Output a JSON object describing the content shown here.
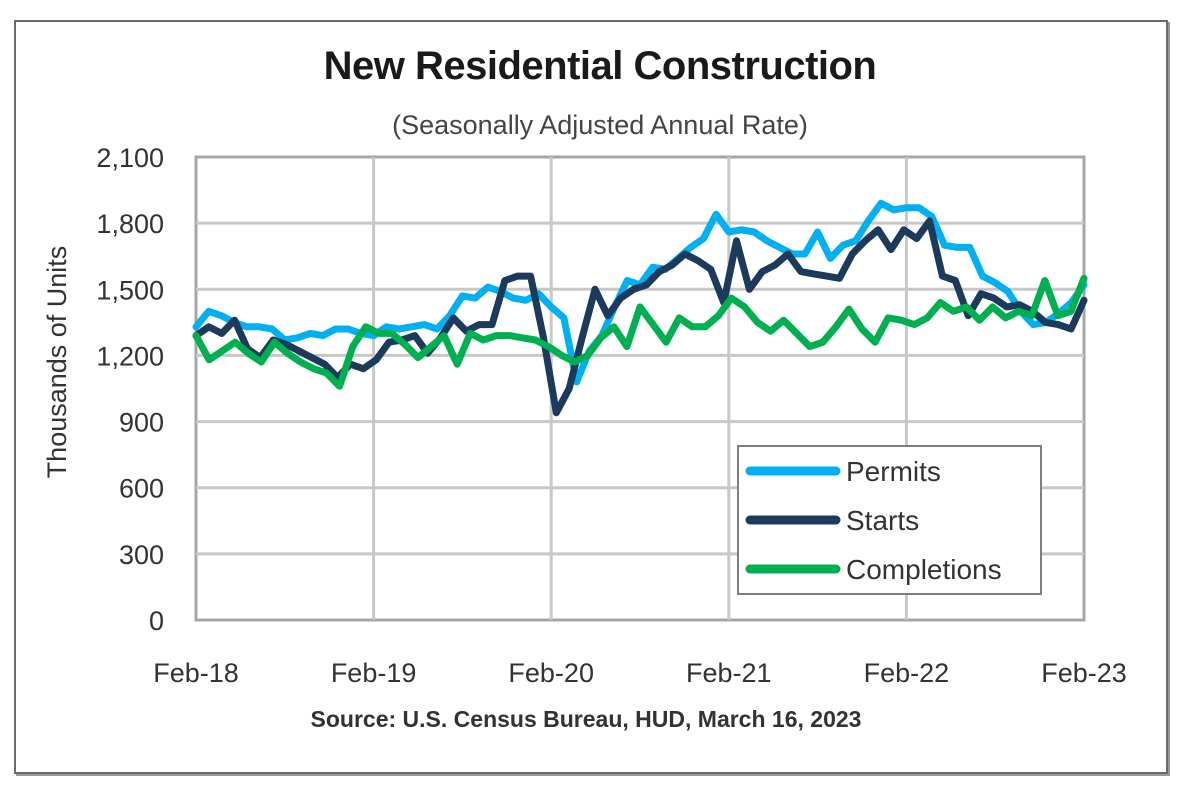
{
  "chart_data": {
    "type": "line",
    "title": "New Residential Construction",
    "subtitle": "(Seasonally Adjusted Annual Rate)",
    "xlabel": "",
    "ylabel": "Thousands of Units",
    "ylim": [
      0,
      2100
    ],
    "yticks": [
      0,
      300,
      600,
      900,
      1200,
      1500,
      1800,
      2100
    ],
    "ytick_labels": [
      "0",
      "300",
      "600",
      "900",
      "1,200",
      "1,500",
      "1,800",
      "2,100"
    ],
    "xtick_labels": [
      "Feb-18",
      "Feb-19",
      "Feb-20",
      "Feb-21",
      "Feb-22",
      "Feb-23"
    ],
    "x_start": "Feb-18",
    "x_end": "Feb-23",
    "grid": true,
    "legend_position": "bottom-right",
    "source": "Source:  U.S. Census Bureau, HUD, March 16, 2023",
    "series": [
      {
        "name": "Permits",
        "color": "#00b0f0",
        "values": [
          1330,
          1400,
          1380,
          1350,
          1330,
          1330,
          1320,
          1270,
          1280,
          1300,
          1290,
          1320,
          1320,
          1300,
          1290,
          1330,
          1320,
          1330,
          1340,
          1320,
          1380,
          1470,
          1460,
          1510,
          1490,
          1460,
          1450,
          1480,
          1420,
          1370,
          1080,
          1220,
          1290,
          1420,
          1540,
          1520,
          1600,
          1590,
          1640,
          1690,
          1730,
          1840,
          1760,
          1770,
          1760,
          1720,
          1690,
          1660,
          1660,
          1760,
          1640,
          1700,
          1720,
          1810,
          1890,
          1860,
          1870,
          1870,
          1830,
          1700,
          1690,
          1690,
          1560,
          1530,
          1490,
          1400,
          1340,
          1350,
          1390,
          1440,
          1520
        ]
      },
      {
        "name": "Starts",
        "color": "#1b3a5c",
        "values": [
          1290,
          1330,
          1300,
          1360,
          1230,
          1190,
          1270,
          1250,
          1220,
          1190,
          1160,
          1100,
          1160,
          1140,
          1180,
          1260,
          1270,
          1290,
          1210,
          1280,
          1370,
          1310,
          1340,
          1340,
          1540,
          1560,
          1560,
          1280,
          940,
          1050,
          1280,
          1500,
          1380,
          1460,
          1500,
          1520,
          1580,
          1610,
          1660,
          1630,
          1590,
          1440,
          1720,
          1500,
          1580,
          1610,
          1660,
          1580,
          1570,
          1560,
          1550,
          1660,
          1720,
          1770,
          1680,
          1770,
          1730,
          1810,
          1560,
          1540,
          1380,
          1480,
          1460,
          1420,
          1430,
          1400,
          1350,
          1340,
          1320,
          1450
        ]
      },
      {
        "name": "Completions",
        "color": "#00b050",
        "values": [
          1290,
          1180,
          1220,
          1260,
          1210,
          1170,
          1260,
          1210,
          1170,
          1140,
          1120,
          1060,
          1240,
          1330,
          1300,
          1300,
          1250,
          1190,
          1240,
          1290,
          1160,
          1300,
          1270,
          1290,
          1290,
          1280,
          1270,
          1240,
          1200,
          1170,
          1200,
          1280,
          1330,
          1240,
          1420,
          1340,
          1260,
          1370,
          1330,
          1330,
          1380,
          1460,
          1420,
          1350,
          1310,
          1360,
          1300,
          1240,
          1260,
          1330,
          1410,
          1320,
          1260,
          1370,
          1360,
          1340,
          1370,
          1440,
          1400,
          1420,
          1360,
          1420,
          1370,
          1400,
          1380,
          1540,
          1380,
          1400,
          1550
        ]
      }
    ]
  }
}
